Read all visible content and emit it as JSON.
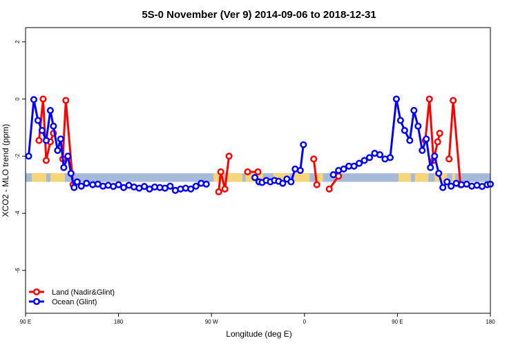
{
  "chart_data": {
    "type": "line",
    "title": "5S-0 November (Ver 9)   2014-09-06 to 2018-12-31",
    "xlabel": "Longitude (deg E)",
    "ylabel": "XCO2 - MLO trend (ppm)",
    "xlim": [
      90,
      540
    ],
    "ylim": [
      -7.5,
      2.5
    ],
    "x_ticks": [
      {
        "value": 90,
        "label": "90 E"
      },
      {
        "value": 180,
        "label": "180"
      },
      {
        "value": 270,
        "label": "90 W"
      },
      {
        "value": 360,
        "label": "0"
      },
      {
        "value": 450,
        "label": "90 E"
      },
      {
        "value": 540,
        "label": "180"
      }
    ],
    "y_ticks": [
      {
        "value": 2,
        "label": "2"
      },
      {
        "value": 0,
        "label": "0"
      },
      {
        "value": -2,
        "label": "-2"
      },
      {
        "value": -4,
        "label": "-4"
      },
      {
        "value": -6,
        "label": "-6"
      }
    ],
    "legend_position": "bottom-left",
    "grid": false,
    "band": {
      "y_low": -2.9,
      "y_high": -2.6,
      "ocean_color": "#a5b9d8",
      "land_color": "#f7d67a"
    },
    "land_spans": [
      [
        96,
        110
      ],
      [
        114,
        128
      ],
      [
        272,
        282
      ],
      [
        284,
        300
      ],
      [
        303,
        320
      ],
      [
        330,
        346
      ],
      [
        350,
        365
      ],
      [
        372,
        378
      ],
      [
        451,
        463
      ],
      [
        467,
        480
      ],
      [
        486,
        498
      ],
      [
        503,
        506
      ]
    ],
    "series": [
      {
        "name": "Land (Nadir&Glint)",
        "color": "#ff0000",
        "segments": [
          [
            [
              103,
              -1.45
            ],
            [
              107,
              0.0
            ],
            [
              110,
              -2.15
            ],
            [
              114,
              -1.5
            ],
            [
              117,
              -1.2
            ]
          ],
          [
            [
              126,
              -2.1
            ],
            [
              129,
              -0.05
            ],
            [
              136,
              -3.0
            ]
          ],
          [
            [
              277,
              -3.25
            ],
            [
              279,
              -2.55
            ],
            [
              283,
              -3.15
            ],
            [
              287,
              -2.0
            ]
          ],
          [
            [
              305,
              -2.55
            ],
            [
              315,
              -2.55
            ]
          ],
          [
            [
              369,
              -2.1
            ],
            [
              372,
              -3.0
            ]
          ],
          [
            [
              384,
              -3.15
            ],
            [
              393,
              -2.7
            ]
          ],
          [
            [
              477,
              -1.45
            ],
            [
              481,
              0.0
            ],
            [
              485,
              -2.15
            ],
            [
              489,
              -1.5
            ],
            [
              491,
              -1.2
            ]
          ],
          [
            [
              500,
              -2.1
            ],
            [
              504,
              -0.05
            ],
            [
              511,
              -3.0
            ]
          ]
        ]
      },
      {
        "name": "Ocean (Glint)",
        "color": "#0000ff",
        "segments": [
          [
            [
              93,
              -2.0
            ],
            [
              98,
              -0.02
            ],
            [
              102,
              -0.75
            ],
            [
              106,
              -1.1
            ],
            [
              110,
              -1.45
            ],
            [
              114,
              -0.4
            ],
            [
              117,
              -0.95
            ],
            [
              121,
              -1.8
            ],
            [
              124,
              -1.4
            ],
            [
              127,
              -2.4
            ],
            [
              131,
              -2.0
            ],
            [
              134,
              -2.6
            ],
            [
              137,
              -3.1
            ],
            [
              140,
              -2.9
            ],
            [
              144,
              -3.05
            ],
            [
              149,
              -2.95
            ],
            [
              155,
              -3.0
            ],
            [
              160,
              -2.98
            ],
            [
              165,
              -3.05
            ],
            [
              170,
              -3.02
            ],
            [
              175,
              -3.06
            ],
            [
              180,
              -3.0
            ],
            [
              185,
              -3.1
            ],
            [
              190,
              -3.02
            ],
            [
              195,
              -3.08
            ],
            [
              200,
              -3.12
            ],
            [
              205,
              -3.06
            ],
            [
              210,
              -3.15
            ],
            [
              215,
              -3.08
            ],
            [
              220,
              -3.1
            ],
            [
              225,
              -3.12
            ],
            [
              230,
              -3.05
            ],
            [
              235,
              -3.2
            ],
            [
              240,
              -3.15
            ],
            [
              245,
              -3.12
            ],
            [
              250,
              -3.15
            ],
            [
              255,
              -3.05
            ],
            [
              260,
              -2.95
            ],
            [
              265,
              -2.98
            ]
          ],
          [
            [
              312,
              -2.75
            ],
            [
              316,
              -2.9
            ],
            [
              319,
              -2.92
            ],
            [
              323,
              -2.85
            ],
            [
              327,
              -2.9
            ],
            [
              331,
              -2.85
            ],
            [
              335,
              -2.88
            ],
            [
              339,
              -2.95
            ],
            [
              343,
              -2.8
            ],
            [
              347,
              -2.9
            ],
            [
              351,
              -2.45
            ],
            [
              356,
              -2.5
            ],
            [
              359,
              -1.6
            ]
          ],
          [
            [
              388,
              -2.65
            ],
            [
              393,
              -2.5
            ],
            [
              398,
              -2.45
            ],
            [
              403,
              -2.35
            ],
            [
              408,
              -2.35
            ],
            [
              413,
              -2.25
            ],
            [
              418,
              -2.15
            ],
            [
              423,
              -2.05
            ],
            [
              428,
              -1.9
            ],
            [
              433,
              -1.95
            ],
            [
              438,
              -2.1
            ],
            [
              443,
              -2.05
            ],
            [
              449,
              0.0
            ],
            [
              453,
              -0.75
            ],
            [
              457,
              -1.1
            ],
            [
              462,
              -1.45
            ],
            [
              466,
              -0.4
            ],
            [
              470,
              -0.95
            ],
            [
              474,
              -1.8
            ],
            [
              478,
              -1.4
            ],
            [
              482,
              -2.4
            ],
            [
              486,
              -2.0
            ],
            [
              490,
              -2.6
            ],
            [
              494,
              -3.1
            ],
            [
              498,
              -2.9
            ],
            [
              502,
              -3.05
            ],
            [
              507,
              -2.95
            ],
            [
              512,
              -3.0
            ],
            [
              517,
              -2.98
            ],
            [
              522,
              -3.05
            ],
            [
              527,
              -3.02
            ],
            [
              532,
              -3.06
            ],
            [
              537,
              -3.0
            ],
            [
              540,
              -2.98
            ]
          ]
        ]
      }
    ]
  }
}
